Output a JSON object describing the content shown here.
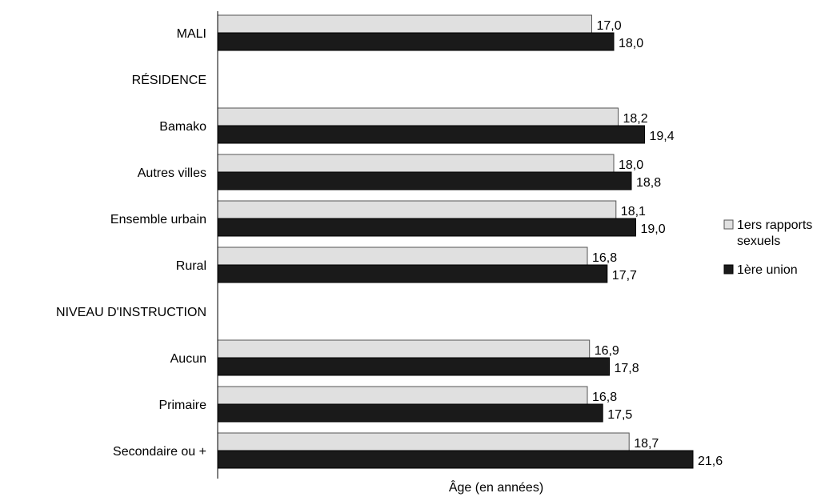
{
  "chart_data": {
    "type": "bar",
    "orientation": "horizontal",
    "xlabel": "Âge (en années)",
    "xlim": [
      0,
      22
    ],
    "grid": false,
    "legend_position": "right",
    "categories": [
      "MALI",
      "RÉSIDENCE",
      "Bamako",
      "Autres villes",
      "Ensemble urbain",
      "Rural",
      "NIVEAU D'INSTRUCTION",
      "Aucun",
      "Primaire",
      "Secondaire ou +"
    ],
    "series": [
      {
        "name": "1ers rapports sexuels",
        "color": "#e0e0e0",
        "values": [
          17.0,
          null,
          18.2,
          18.0,
          18.1,
          16.8,
          null,
          16.9,
          16.8,
          18.7
        ],
        "labels": [
          "17,0",
          "",
          "18,2",
          "18,0",
          "18,1",
          "16,8",
          "",
          "16,9",
          "16,8",
          "18,7"
        ]
      },
      {
        "name": "1ère union",
        "color": "#1a1a1a",
        "values": [
          18.0,
          null,
          19.4,
          18.8,
          19.0,
          17.7,
          null,
          17.8,
          17.5,
          21.6
        ],
        "labels": [
          "18,0",
          "",
          "19,4",
          "18,8",
          "19,0",
          "17,7",
          "",
          "17,8",
          "17,5",
          "21,6"
        ]
      }
    ]
  },
  "legend": {
    "items": [
      {
        "line1": "1ers rapports",
        "line2": "sexuels",
        "icon": "light-square-icon"
      },
      {
        "line1": "1ère union",
        "line2": "",
        "icon": "dark-square-icon"
      }
    ]
  }
}
